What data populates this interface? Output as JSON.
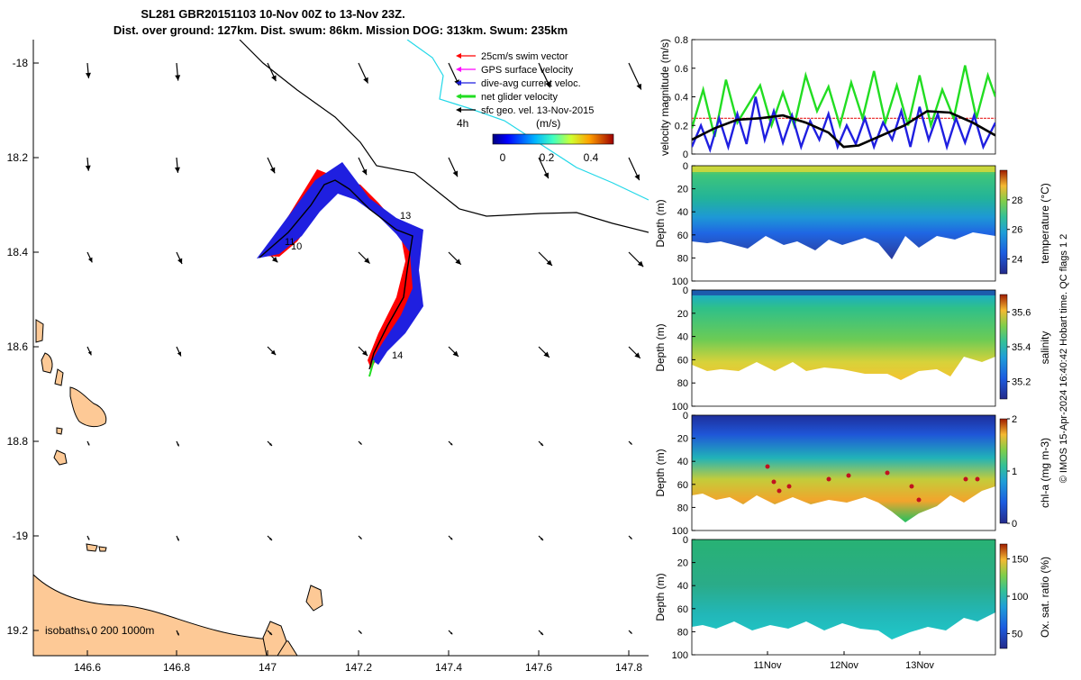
{
  "colors": {
    "land": "#fdc996",
    "swim": "#ff0000",
    "gps": "#ff00ff",
    "dive": "#1f1fe0",
    "net": "#22dd22",
    "sfc": "#000000",
    "cyan": "#22d8e8",
    "mean_line": "#e82222"
  },
  "title": {
    "line1": "SL281 GBR20151103 10-Nov 00Z to 13-Nov 23Z.",
    "line2": "Dist. over ground: 127km. Dist. swum: 86km. Mission DOG: 313km. Swum: 235km"
  },
  "map": {
    "lon_ticks": [
      "146.6",
      "146.8",
      "147",
      "147.2",
      "147.4",
      "147.6",
      "147.8"
    ],
    "lat_ticks": [
      "-18",
      "18.2",
      "18.4",
      "18.6",
      "18.8",
      "-19",
      "19.2"
    ],
    "isobath_label": "isobaths: 0   200  1000m",
    "track_labels": [
      "10",
      "13",
      "14",
      "11"
    ],
    "time_label": "4h",
    "legend": [
      {
        "label": "25cm/s swim vector",
        "color_key": "swim"
      },
      {
        "label": "GPS surface velocity",
        "color_key": "gps"
      },
      {
        "label": "dive-avg current veloc.",
        "color_key": "dive"
      },
      {
        "label": "net glider velocity",
        "color_key": "net"
      },
      {
        "label": "sfc geo. vel. 13-Nov-2015",
        "color_key": "sfc"
      }
    ],
    "colorbar": {
      "label": "(m/s)",
      "ticks": [
        "0",
        "0.2",
        "0.4"
      ]
    }
  },
  "chart_data": [
    {
      "type": "line",
      "title": "",
      "ylabel": "velocity magnitude (m/s)",
      "ylim": [
        0,
        0.8
      ],
      "y_ticks": [
        "0",
        "0.2",
        "0.4",
        "0.6",
        "0.8"
      ],
      "x_range_days": [
        10.0,
        14.0
      ],
      "series": [
        {
          "name": "net glider velocity",
          "color_key": "net",
          "x": [
            10.0,
            10.15,
            10.3,
            10.45,
            10.6,
            10.75,
            10.9,
            11.05,
            11.2,
            11.35,
            11.5,
            11.65,
            11.8,
            11.95,
            12.1,
            12.25,
            12.4,
            12.55,
            12.7,
            12.85,
            13.0,
            13.15,
            13.3,
            13.45,
            13.6,
            13.75,
            13.9,
            14.0
          ],
          "values": [
            0.18,
            0.45,
            0.12,
            0.52,
            0.22,
            0.35,
            0.48,
            0.2,
            0.43,
            0.2,
            0.55,
            0.3,
            0.47,
            0.2,
            0.5,
            0.25,
            0.58,
            0.22,
            0.48,
            0.2,
            0.55,
            0.2,
            0.45,
            0.25,
            0.62,
            0.25,
            0.55,
            0.4
          ]
        },
        {
          "name": "dive-avg current veloc.",
          "color_key": "dive",
          "x": [
            10.0,
            10.12,
            10.24,
            10.36,
            10.48,
            10.6,
            10.72,
            10.84,
            10.96,
            11.08,
            11.2,
            11.32,
            11.44,
            11.56,
            11.68,
            11.8,
            11.92,
            12.04,
            12.16,
            12.28,
            12.4,
            12.52,
            12.64,
            12.76,
            12.88,
            13.0,
            13.12,
            13.24,
            13.36,
            13.48,
            13.6,
            13.72,
            13.84,
            14.0
          ],
          "values": [
            0.05,
            0.2,
            0.03,
            0.25,
            0.05,
            0.28,
            0.07,
            0.4,
            0.1,
            0.3,
            0.08,
            0.27,
            0.05,
            0.23,
            0.1,
            0.28,
            0.05,
            0.2,
            0.07,
            0.25,
            0.05,
            0.22,
            0.1,
            0.3,
            0.05,
            0.33,
            0.1,
            0.28,
            0.05,
            0.25,
            0.08,
            0.27,
            0.05,
            0.22
          ]
        },
        {
          "name": "sfc geo. vel.",
          "color_key": "sfc",
          "x": [
            10.0,
            10.3,
            10.6,
            10.9,
            11.2,
            11.5,
            11.8,
            12.0,
            12.2,
            12.5,
            12.8,
            13.1,
            13.4,
            13.7,
            14.0
          ],
          "values": [
            0.1,
            0.18,
            0.24,
            0.25,
            0.27,
            0.22,
            0.15,
            0.05,
            0.06,
            0.13,
            0.2,
            0.3,
            0.29,
            0.22,
            0.13
          ]
        }
      ],
      "reference_line": {
        "name": "25cm/s swim vector",
        "value": 0.25,
        "color_key": "mean_line"
      }
    },
    {
      "type": "heatmap",
      "ylabel": "Depth (m)",
      "cbar_label": "temperature (°C)",
      "depth_ticks": [
        "0",
        "20",
        "40",
        "60",
        "80",
        "100"
      ],
      "cbar_ticks": [
        "24",
        "26",
        "28"
      ],
      "cbar_range": [
        23,
        30
      ]
    },
    {
      "type": "heatmap",
      "ylabel": "Depth (m)",
      "cbar_label": "salinity",
      "depth_ticks": [
        "0",
        "20",
        "40",
        "60",
        "80",
        "100"
      ],
      "cbar_ticks": [
        "35.2",
        "35.4",
        "35.6"
      ],
      "cbar_range": [
        35.1,
        35.7
      ]
    },
    {
      "type": "heatmap",
      "ylabel": "Depth (m)",
      "cbar_label": "chl-a (mg m-3)",
      "depth_ticks": [
        "0",
        "20",
        "40",
        "60",
        "80",
        "100"
      ],
      "cbar_ticks": [
        "0",
        "1",
        "2"
      ],
      "cbar_range": [
        0,
        2
      ]
    },
    {
      "type": "heatmap",
      "ylabel": "Depth (m)",
      "cbar_label": "Ox. sat. ratio (%)",
      "depth_ticks": [
        "0",
        "20",
        "40",
        "60",
        "80",
        "100"
      ],
      "cbar_ticks": [
        "50",
        "100",
        "150"
      ],
      "cbar_range": [
        30,
        170
      ]
    }
  ],
  "x_date_ticks": [
    "11Nov",
    "12Nov",
    "13Nov"
  ],
  "side_note": "© IMOS 15-Apr-2024 16:40:42 Hobart time. QC flags 1  2"
}
